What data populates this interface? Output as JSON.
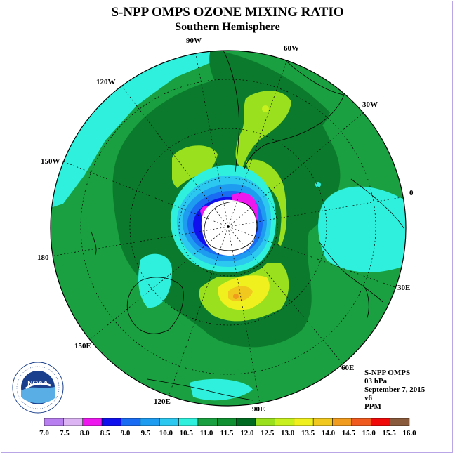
{
  "header": {
    "title": "S-NPP OMPS OZONE MIXING RATIO",
    "subtitle": "Southern Hemisphere"
  },
  "longitude_labels": [
    {
      "name": "lon-90w",
      "text": "90W"
    },
    {
      "name": "lon-60w",
      "text": "60W"
    },
    {
      "name": "lon-30w",
      "text": "30W"
    },
    {
      "name": "lon-0",
      "text": "0"
    },
    {
      "name": "lon-30e",
      "text": "30E"
    },
    {
      "name": "lon-60e",
      "text": "60E"
    },
    {
      "name": "lon-90e",
      "text": "90E"
    },
    {
      "name": "lon-120e",
      "text": "120E"
    },
    {
      "name": "lon-150e",
      "text": "150E"
    },
    {
      "name": "lon-180",
      "text": "180"
    },
    {
      "name": "lon-150w",
      "text": "150W"
    },
    {
      "name": "lon-120w",
      "text": "120W"
    }
  ],
  "info": {
    "instrument": "S-NPP OMPS",
    "level": "03 hPa",
    "date": "September 7, 2015",
    "version": "v6",
    "units": "PPM"
  },
  "logo": {
    "text": "NOAA",
    "ring_text": "NATIONAL OCEANIC AND ATMOSPHERIC ADMINISTRATION · U.S. DEPARTMENT OF COMMERCE"
  },
  "colorbar": {
    "levels": [
      7.0,
      7.5,
      8.0,
      8.5,
      9.0,
      9.5,
      10.0,
      10.5,
      11.0,
      11.5,
      12.0,
      12.5,
      13.0,
      13.5,
      14.0,
      14.5,
      15.0,
      15.5,
      16.0
    ],
    "labels": [
      "7.0",
      "7.5",
      "8.0",
      "8.5",
      "9.0",
      "9.5",
      "10.0",
      "10.5",
      "11.0",
      "11.5",
      "12.0",
      "12.5",
      "13.0",
      "13.5",
      "14.0",
      "14.5",
      "15.0",
      "15.5",
      "16.0"
    ],
    "colors": [
      "#b87ff0",
      "#dcb4f4",
      "#ee18ee",
      "#1010ee",
      "#1a6cf2",
      "#1e9cf0",
      "#2cc8f0",
      "#2ef0dc",
      "#1aa040",
      "#109030",
      "#006a20",
      "#9ae01e",
      "#c8f01e",
      "#f0f01e",
      "#f0c81e",
      "#f09a1e",
      "#f05a1e",
      "#f00a0a",
      "#8a5a3c"
    ]
  },
  "map_colors": {
    "dark_green": "#0c7a2c",
    "mid_green": "#1aa040",
    "cyan": "#2ef0dc",
    "light_blue": "#2cc8f0",
    "blue": "#1a6cf2",
    "deep_blue": "#1010ee",
    "magenta": "#ee18ee",
    "yellow_green": "#9ae01e",
    "yellow": "#f0f01e",
    "orange": "#f0c81e"
  }
}
